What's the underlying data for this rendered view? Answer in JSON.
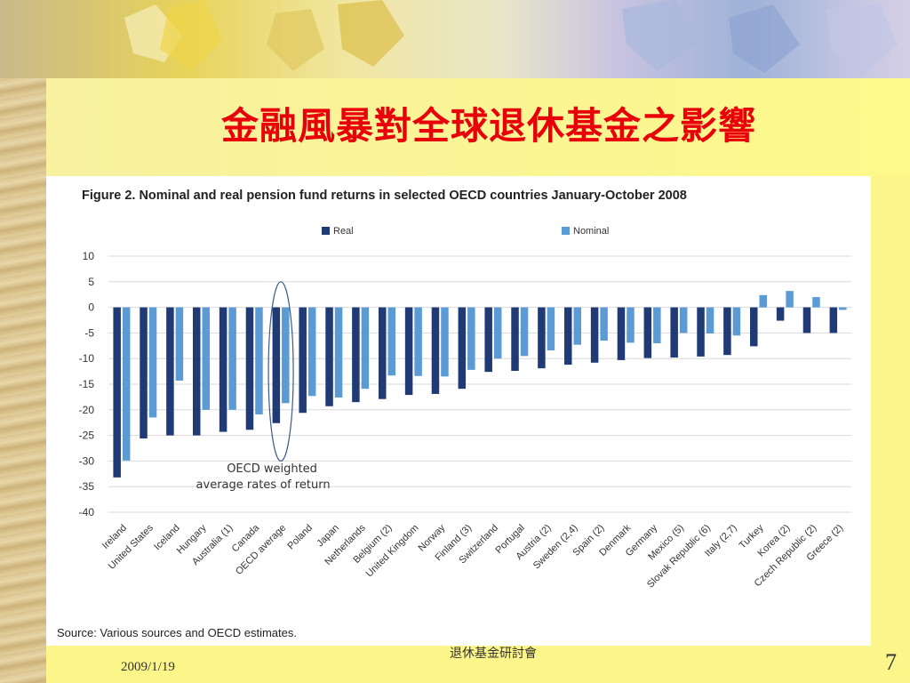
{
  "slide": {
    "title": "金融風暴對全球退休基金之影響",
    "footer_date": "2009/1/19",
    "footer_center": "退休基金研討會",
    "page_number": "7"
  },
  "colors": {
    "real": "#203a76",
    "nominal": "#5b9bd5",
    "title": "#e8000a"
  },
  "chart_data": {
    "type": "bar",
    "title": "Figure 2. Nominal and real pension fund returns in selected OECD countries January-October 2008",
    "source": "Source: Various sources and OECD estimates.",
    "legend": [
      "Real",
      "Nominal"
    ],
    "legend_placement": "top",
    "ylim": [
      -40,
      10
    ],
    "yticks": [
      10,
      5,
      0,
      -5,
      -10,
      -15,
      -20,
      -25,
      -30,
      -35,
      -40
    ],
    "grid": true,
    "annotation": [
      "OECD weighted",
      "average rates of return"
    ],
    "categories": [
      "Ireland",
      "United States",
      "Iceland",
      "Hungary",
      "Australia (1)",
      "Canada",
      "OECD average",
      "Poland",
      "Japan",
      "Netherlands",
      "Belgium (2)",
      "United Kingdom",
      "Norway",
      "Finland (3)",
      "Switzerland",
      "Portugal",
      "Austria (2)",
      "Sweden (2,4)",
      "Spain (2)",
      "Denmark",
      "Germany",
      "Mexico (5)",
      "Slovak Republic (6)",
      "Italy (2,7)",
      "Turkey",
      "Korea (2)",
      "Czech Republic (2)",
      "Greece (2)"
    ],
    "series": [
      {
        "name": "Real",
        "values": [
          -33.2,
          -25.6,
          -25.0,
          -25.0,
          -24.3,
          -23.9,
          -22.6,
          -20.6,
          -19.3,
          -18.5,
          -17.9,
          -17.1,
          -16.9,
          -15.9,
          -12.6,
          -12.4,
          -11.9,
          -11.2,
          -10.8,
          -10.3,
          -9.9,
          -9.8,
          -9.6,
          -9.3,
          -7.6,
          -2.6,
          -5.0,
          -5.0
        ]
      },
      {
        "name": "Nominal",
        "values": [
          -29.9,
          -21.5,
          -14.3,
          -20.0,
          -20.0,
          -20.9,
          -18.7,
          -17.3,
          -17.6,
          -15.9,
          -13.3,
          -13.4,
          -13.5,
          -12.2,
          -10.0,
          -9.5,
          -8.4,
          -7.3,
          -6.5,
          -6.9,
          -7.0,
          -5.0,
          -5.1,
          -5.5,
          2.4,
          3.2,
          2.0,
          -0.5
        ]
      }
    ]
  }
}
